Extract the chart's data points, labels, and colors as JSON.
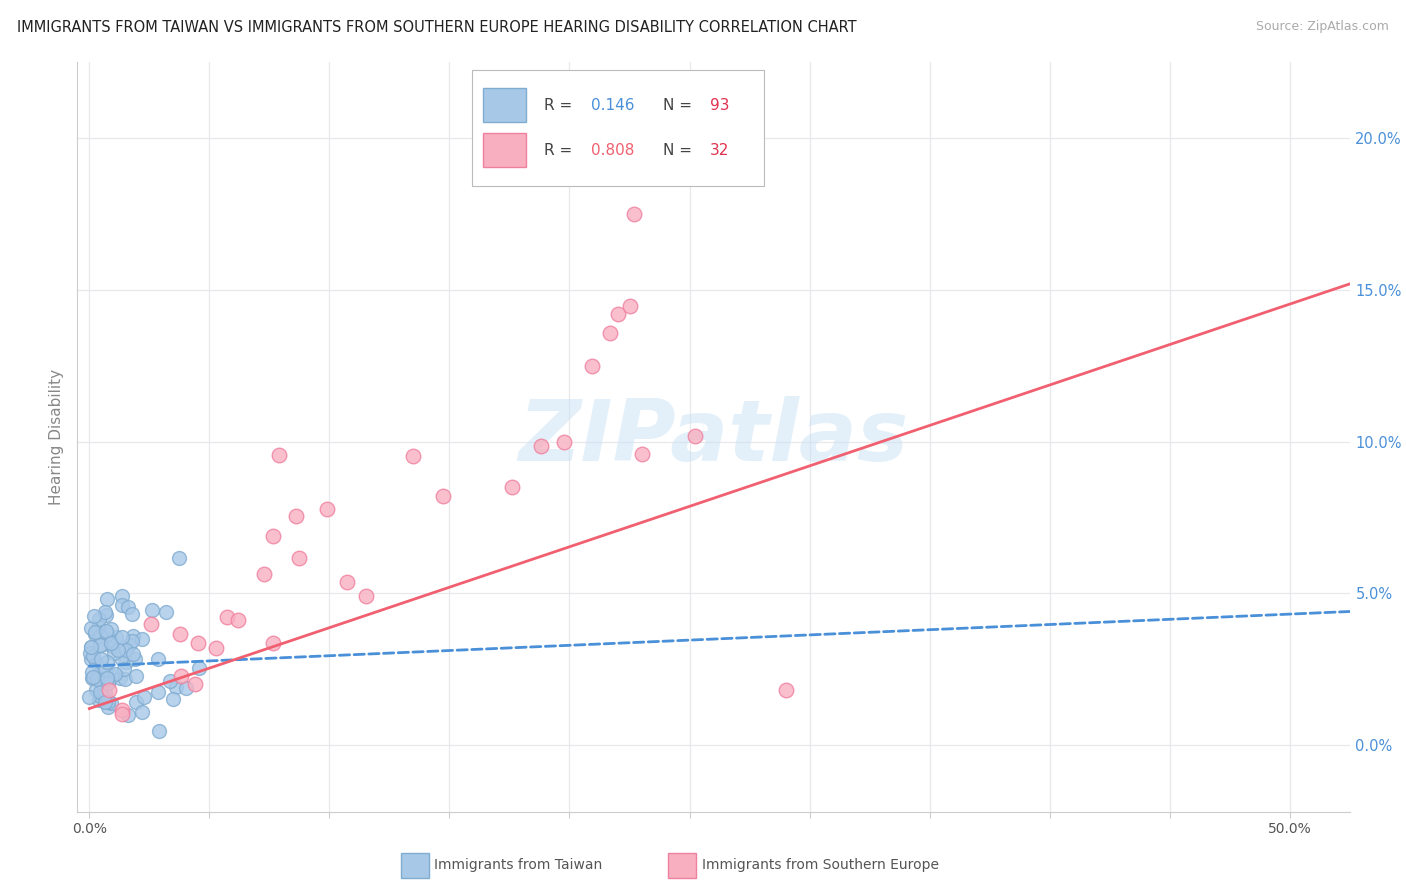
{
  "title": "IMMIGRANTS FROM TAIWAN VS IMMIGRANTS FROM SOUTHERN EUROPE HEARING DISABILITY CORRELATION CHART",
  "source": "Source: ZipAtlas.com",
  "ylabel": "Hearing Disability",
  "watermark": "ZIPatlas",
  "taiwan_color_face": "#a8c8e8",
  "taiwan_color_edge": "#80acd0",
  "s_europe_color_face": "#f8b0c0",
  "s_europe_color_edge": "#f080a0",
  "taiwan_line_color": "#4a90d9",
  "s_europe_line_color": "#f06070",
  "R_taiwan": "0.146",
  "N_taiwan": "93",
  "R_s_europe": "0.808",
  "N_s_europe": "32",
  "ylim": [
    -0.022,
    0.225
  ],
  "xlim": [
    -0.005,
    0.525
  ],
  "yticks": [
    0.0,
    0.05,
    0.1,
    0.15,
    0.2
  ],
  "ytick_labels": [
    "0.0%",
    "5.0%",
    "10.0%",
    "15.0%",
    "20.0%"
  ],
  "xtick_left_label": "0.0%",
  "xtick_right_label": "50.0%",
  "grid_color": "#e8e8ec",
  "bg_color": "#ffffff",
  "legend_taiwan": "Immigrants from Taiwan",
  "legend_s_europe": "Immigrants from Southern Europe",
  "tw_trend_start_y": 0.026,
  "tw_trend_end_y": 0.044,
  "se_trend_start_y": 0.012,
  "se_trend_end_y": 0.152
}
